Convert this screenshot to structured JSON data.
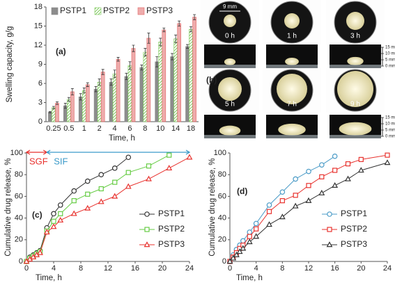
{
  "chart_data": [
    {
      "type": "bar",
      "panel_label": "(a)",
      "y_label": "Swelling capacity, g/g",
      "x_label": "Time, h",
      "categories": [
        "0.25",
        "0.5",
        "1",
        "2",
        "4",
        "6",
        "8",
        "10",
        "14",
        "18"
      ],
      "series": [
        {
          "name": "PSTP1",
          "color": "#8c8c8c",
          "values": [
            1.5,
            2.5,
            3.9,
            5.1,
            6.2,
            7.1,
            8.5,
            9.4,
            10.2,
            11.8
          ],
          "errors": [
            0.1,
            0.4,
            0.5,
            0.4,
            0.5,
            0.5,
            0.4,
            0.8,
            0.5,
            0.3
          ]
        },
        {
          "name": "PSTP2",
          "color": "#7cc95a",
          "hatch": true,
          "values": [
            2.2,
            3.5,
            4.9,
            6.2,
            7.5,
            8.8,
            10.9,
            12.5,
            13.0,
            14.5
          ],
          "errors": [
            0.2,
            0.3,
            0.4,
            0.5,
            0.6,
            0.6,
            0.6,
            0.6,
            0.6,
            0.4
          ]
        },
        {
          "name": "PSTP3",
          "color": "#e06666",
          "values": [
            2.9,
            4.7,
            5.8,
            7.8,
            9.8,
            11.5,
            13.1,
            14.4,
            15.4,
            16.4
          ],
          "errors": [
            0.2,
            0.5,
            0.3,
            0.4,
            0.3,
            0.5,
            0.8,
            0.3,
            0.4,
            0.4
          ]
        }
      ],
      "ylim": [
        0,
        18
      ],
      "yticks": [
        0,
        3,
        6,
        9,
        12,
        15,
        18
      ],
      "legend": "top"
    },
    {
      "type": "line",
      "panel_label": "(c)",
      "y_label": "Cumulative drug release, %",
      "x_label": "Time, h",
      "x": [
        0,
        0.5,
        1,
        1.5,
        2,
        3,
        4,
        5,
        7,
        9,
        11,
        13,
        15,
        18,
        21,
        24
      ],
      "series": [
        {
          "name": "PSTP1",
          "color": "#333333",
          "marker": "circle",
          "values": [
            0,
            4,
            6,
            8,
            10,
            31,
            44,
            52,
            65,
            74,
            80,
            86,
            96,
            null,
            null,
            null
          ]
        },
        {
          "name": "PSTP2",
          "color": "#66cc44",
          "marker": "square",
          "values": [
            0,
            3,
            5,
            7,
            9,
            28,
            37,
            44,
            56,
            62,
            67,
            73,
            82,
            88,
            98,
            null
          ]
        },
        {
          "name": "PSTP3",
          "color": "#e8322e",
          "marker": "triangle",
          "values": [
            0,
            2,
            4,
            6,
            8,
            27,
            32,
            38,
            44,
            49,
            55,
            60,
            69,
            76,
            86,
            96
          ]
        }
      ],
      "annotations": [
        {
          "text": "SGF",
          "color": "#e8322e",
          "range": [
            0,
            3
          ]
        },
        {
          "text": "SIF",
          "color": "#3b9ac9",
          "range": [
            3,
            24
          ]
        }
      ],
      "xlim": [
        0,
        24
      ],
      "xticks": [
        0,
        4,
        8,
        12,
        16,
        20,
        24
      ],
      "ylim": [
        0,
        100
      ],
      "yticks": [
        0,
        20,
        40,
        60,
        80,
        100
      ],
      "legend": "lower right"
    },
    {
      "type": "line",
      "panel_label": "(d)",
      "y_label": "Cumulative drug release, %",
      "x_label": "Time, h",
      "x": [
        0,
        0.5,
        1,
        1.5,
        2,
        3,
        4,
        6,
        8,
        10,
        12,
        14,
        16,
        18,
        20,
        24
      ],
      "series": [
        {
          "name": "PSTP1",
          "color": "#4a9bc7",
          "marker": "circle",
          "values": [
            0,
            6,
            11,
            15,
            19,
            27,
            35,
            52,
            64,
            76,
            83,
            89,
            97,
            null,
            null,
            null
          ]
        },
        {
          "name": "PSTP2",
          "color": "#e8322e",
          "marker": "square",
          "values": [
            0,
            4,
            8,
            12,
            15,
            23,
            30,
            46,
            56,
            61,
            70,
            78,
            84,
            90,
            94,
            98
          ]
        },
        {
          "name": "PSTP3",
          "color": "#333333",
          "marker": "triangle",
          "values": [
            0,
            3,
            6,
            9,
            12,
            18,
            23,
            34,
            41,
            51,
            56,
            63,
            70,
            76,
            84,
            91
          ]
        }
      ],
      "xlim": [
        0,
        24
      ],
      "xticks": [
        0,
        4,
        8,
        12,
        16,
        20,
        24
      ],
      "ylim": [
        0,
        100
      ],
      "yticks": [
        0,
        20,
        40,
        60,
        80,
        100
      ],
      "legend": "lower right"
    }
  ],
  "photos": {
    "label": "(b)",
    "scale": "9 mm",
    "times": [
      "0 h",
      "1 h",
      "3 h",
      "5 h",
      "7 h",
      "9 h"
    ],
    "ruler": [
      "15 mm",
      "10 mm",
      "5 mm",
      "0 mm"
    ]
  }
}
